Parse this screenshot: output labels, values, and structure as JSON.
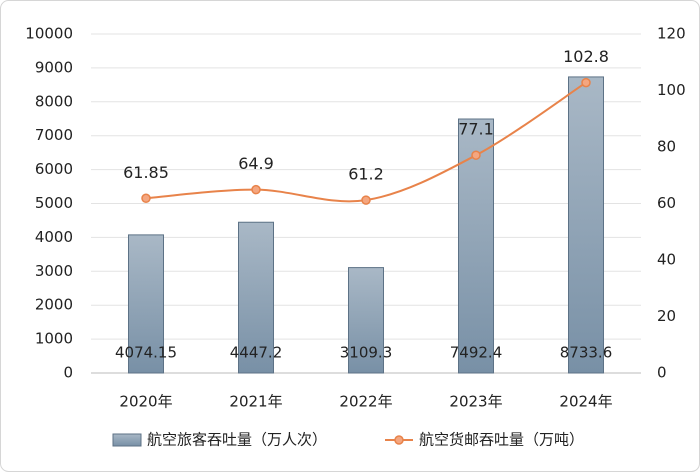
{
  "chart_data": {
    "type": "bar",
    "categories": [
      "2020年",
      "2021年",
      "2022年",
      "2023年",
      "2024年"
    ],
    "series": [
      {
        "name": "航空旅客吞吐量（万人次）",
        "type": "bar",
        "color": "#8a9fb3",
        "values": [
          4074.15,
          4447.2,
          3109.3,
          7492.4,
          8733.6
        ]
      },
      {
        "name": "航空货邮吞吐量（万吨）",
        "type": "line",
        "color": "#e8834a",
        "axis": "y2",
        "values": [
          61.85,
          64.9,
          61.2,
          77.1,
          102.8
        ]
      }
    ],
    "ylim": [
      0,
      10000
    ],
    "yticks": [
      0,
      1000,
      2000,
      3000,
      4000,
      5000,
      6000,
      7000,
      8000,
      9000,
      10000
    ],
    "y2lim": [
      0,
      120
    ],
    "y2ticks": [
      0,
      20,
      40,
      60,
      80,
      100,
      120
    ],
    "grid": true,
    "legend": "bottom"
  }
}
